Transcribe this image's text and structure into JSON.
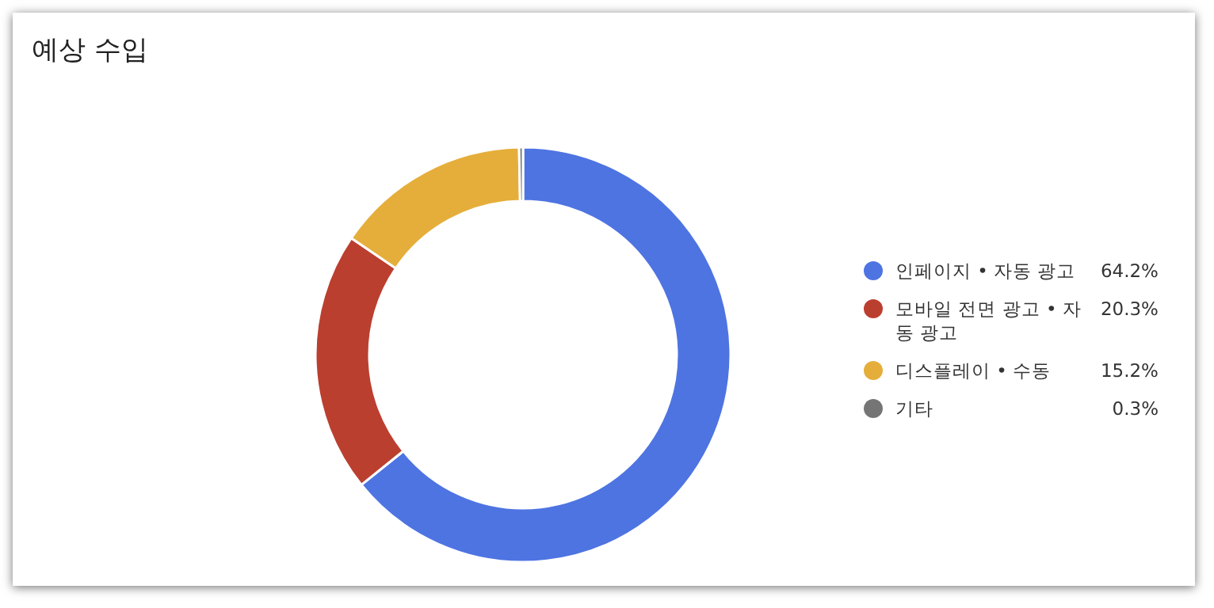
{
  "chart_data": {
    "type": "donut",
    "title": "예상 수입",
    "categories": [
      "인페이지 • 자동 광고",
      "모바일 전면 광고 • 자동 광고",
      "디스플레이 • 수동",
      "기타"
    ],
    "values": [
      64.2,
      20.3,
      15.2,
      0.3
    ],
    "value_labels": [
      "64.2%",
      "20.3%",
      "15.2%",
      "0.3%"
    ],
    "colors": [
      "#4e74e2",
      "#bb3f2f",
      "#e5ae3b",
      "#757575"
    ],
    "legend": "right"
  }
}
